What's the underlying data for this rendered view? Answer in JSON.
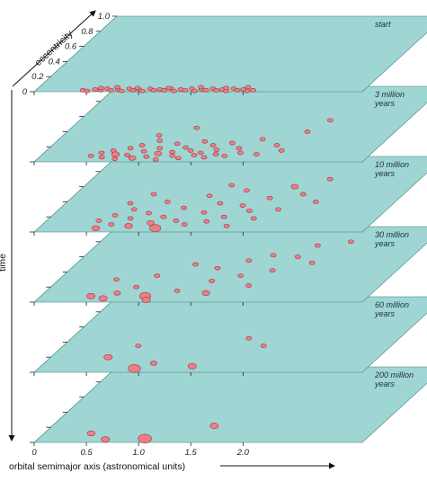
{
  "chart_data": {
    "type": "scatter",
    "xlabel": "orbital semimajor axis (astronomical units)",
    "ylabel": "eccentricity",
    "zlabel": "time",
    "xlim": [
      0,
      2.5
    ],
    "ylim": [
      0,
      1.0
    ],
    "x_ticks": [
      "0",
      "0.5",
      "1.0",
      "1.5",
      "2.0"
    ],
    "y_ticks": [
      "0",
      "0.2",
      "0.4",
      "0.6",
      "0.8",
      "1.0"
    ],
    "panels": [
      {
        "label": "start",
        "points": [
          {
            "x": 0.45,
            "y": 0.02,
            "s": 1
          },
          {
            "x": 0.5,
            "y": 0.01,
            "s": 1
          },
          {
            "x": 0.56,
            "y": 0.03,
            "s": 1
          },
          {
            "x": 0.62,
            "y": 0.02,
            "s": 1
          },
          {
            "x": 0.67,
            "y": 0.04,
            "s": 1
          },
          {
            "x": 0.72,
            "y": 0.02,
            "s": 1
          },
          {
            "x": 0.78,
            "y": 0.03,
            "s": 1
          },
          {
            "x": 0.83,
            "y": 0.01,
            "s": 1
          },
          {
            "x": 0.88,
            "y": 0.04,
            "s": 1
          },
          {
            "x": 0.93,
            "y": 0.02,
            "s": 1
          },
          {
            "x": 0.98,
            "y": 0.03,
            "s": 1
          },
          {
            "x": 1.03,
            "y": 0.01,
            "s": 1
          },
          {
            "x": 1.08,
            "y": 0.04,
            "s": 1
          },
          {
            "x": 1.13,
            "y": 0.02,
            "s": 1
          },
          {
            "x": 1.18,
            "y": 0.03,
            "s": 1
          },
          {
            "x": 1.23,
            "y": 0.02,
            "s": 1
          },
          {
            "x": 1.28,
            "y": 0.04,
            "s": 1
          },
          {
            "x": 1.33,
            "y": 0.01,
            "s": 1
          },
          {
            "x": 1.38,
            "y": 0.03,
            "s": 1
          },
          {
            "x": 1.43,
            "y": 0.02,
            "s": 1
          },
          {
            "x": 1.48,
            "y": 0.04,
            "s": 1
          },
          {
            "x": 1.53,
            "y": 0.01,
            "s": 1
          },
          {
            "x": 1.58,
            "y": 0.03,
            "s": 1
          },
          {
            "x": 1.63,
            "y": 0.02,
            "s": 1
          },
          {
            "x": 1.68,
            "y": 0.04,
            "s": 1
          },
          {
            "x": 1.73,
            "y": 0.02,
            "s": 1
          },
          {
            "x": 1.78,
            "y": 0.03,
            "s": 1
          },
          {
            "x": 1.83,
            "y": 0.01,
            "s": 1
          },
          {
            "x": 1.88,
            "y": 0.04,
            "s": 1
          },
          {
            "x": 1.93,
            "y": 0.02,
            "s": 1
          },
          {
            "x": 1.98,
            "y": 0.03,
            "s": 1
          },
          {
            "x": 2.03,
            "y": 0.01,
            "s": 1
          },
          {
            "x": 2.08,
            "y": 0.02,
            "s": 1
          },
          {
            "x": 0.6,
            "y": 0.05,
            "s": 1
          },
          {
            "x": 0.95,
            "y": 0.05,
            "s": 1
          },
          {
            "x": 1.25,
            "y": 0.05,
            "s": 1
          },
          {
            "x": 1.55,
            "y": 0.06,
            "s": 1
          },
          {
            "x": 1.8,
            "y": 0.05,
            "s": 1
          },
          {
            "x": 2.0,
            "y": 0.06,
            "s": 1
          },
          {
            "x": 0.75,
            "y": 0.06,
            "s": 1
          }
        ]
      },
      {
        "label": "3 million years",
        "points": [
          {
            "x": 0.48,
            "y": 0.08,
            "s": 1
          },
          {
            "x": 0.55,
            "y": 0.12,
            "s": 1
          },
          {
            "x": 0.6,
            "y": 0.06,
            "s": 1
          },
          {
            "x": 0.64,
            "y": 0.15,
            "s": 1
          },
          {
            "x": 0.7,
            "y": 0.1,
            "s": 1.4
          },
          {
            "x": 0.74,
            "y": 0.04,
            "s": 1
          },
          {
            "x": 0.78,
            "y": 0.18,
            "s": 1
          },
          {
            "x": 0.82,
            "y": 0.09,
            "s": 1
          },
          {
            "x": 0.86,
            "y": 0.22,
            "s": 1
          },
          {
            "x": 0.9,
            "y": 0.05,
            "s": 1.3
          },
          {
            "x": 0.94,
            "y": 0.14,
            "s": 1
          },
          {
            "x": 0.98,
            "y": 0.28,
            "s": 1
          },
          {
            "x": 1.02,
            "y": 0.07,
            "s": 1
          },
          {
            "x": 1.06,
            "y": 0.18,
            "s": 1
          },
          {
            "x": 1.1,
            "y": 0.11,
            "s": 1.3
          },
          {
            "x": 1.14,
            "y": 0.03,
            "s": 1
          },
          {
            "x": 1.18,
            "y": 0.24,
            "s": 1
          },
          {
            "x": 1.22,
            "y": 0.13,
            "s": 1
          },
          {
            "x": 1.26,
            "y": 0.08,
            "s": 1
          },
          {
            "x": 1.3,
            "y": 0.19,
            "s": 1
          },
          {
            "x": 1.34,
            "y": 0.05,
            "s": 1
          },
          {
            "x": 1.38,
            "y": 0.15,
            "s": 1
          },
          {
            "x": 1.42,
            "y": 0.27,
            "s": 1
          },
          {
            "x": 1.46,
            "y": 0.09,
            "s": 1
          },
          {
            "x": 1.5,
            "y": 0.12,
            "s": 1
          },
          {
            "x": 1.54,
            "y": 0.22,
            "s": 1
          },
          {
            "x": 1.58,
            "y": 0.06,
            "s": 1
          },
          {
            "x": 1.62,
            "y": 0.16,
            "s": 1
          },
          {
            "x": 1.66,
            "y": 0.1,
            "s": 1
          },
          {
            "x": 1.7,
            "y": 0.25,
            "s": 1
          },
          {
            "x": 1.76,
            "y": 0.08,
            "s": 1
          },
          {
            "x": 1.82,
            "y": 0.18,
            "s": 1
          },
          {
            "x": 1.88,
            "y": 0.12,
            "s": 1
          },
          {
            "x": 1.95,
            "y": 0.3,
            "s": 1
          },
          {
            "x": 2.05,
            "y": 0.1,
            "s": 1
          },
          {
            "x": 2.15,
            "y": 0.22,
            "s": 1
          },
          {
            "x": 2.25,
            "y": 0.15,
            "s": 1
          },
          {
            "x": 2.4,
            "y": 0.55,
            "s": 1
          },
          {
            "x": 1.2,
            "y": 0.45,
            "s": 1
          },
          {
            "x": 2.3,
            "y": 0.4,
            "s": 1
          },
          {
            "x": 0.92,
            "y": 0.35,
            "s": 1
          }
        ]
      },
      {
        "label": "10 million years",
        "points": [
          {
            "x": 0.5,
            "y": 0.15,
            "s": 1
          },
          {
            "x": 0.55,
            "y": 0.05,
            "s": 1.4
          },
          {
            "x": 0.6,
            "y": 0.22,
            "s": 1
          },
          {
            "x": 0.66,
            "y": 0.1,
            "s": 1
          },
          {
            "x": 0.72,
            "y": 0.3,
            "s": 1
          },
          {
            "x": 0.78,
            "y": 0.18,
            "s": 1
          },
          {
            "x": 0.84,
            "y": 0.08,
            "s": 1.4
          },
          {
            "x": 0.9,
            "y": 0.25,
            "s": 1
          },
          {
            "x": 0.96,
            "y": 0.4,
            "s": 1
          },
          {
            "x": 1.02,
            "y": 0.12,
            "s": 1.3
          },
          {
            "x": 1.08,
            "y": 0.2,
            "s": 1
          },
          {
            "x": 1.12,
            "y": 0.05,
            "s": 2
          },
          {
            "x": 1.18,
            "y": 0.32,
            "s": 1
          },
          {
            "x": 1.24,
            "y": 0.15,
            "s": 1
          },
          {
            "x": 1.3,
            "y": 0.48,
            "s": 1
          },
          {
            "x": 1.36,
            "y": 0.1,
            "s": 1
          },
          {
            "x": 1.42,
            "y": 0.26,
            "s": 1
          },
          {
            "x": 1.48,
            "y": 0.38,
            "s": 1
          },
          {
            "x": 1.54,
            "y": 0.14,
            "s": 1
          },
          {
            "x": 1.6,
            "y": 0.55,
            "s": 1
          },
          {
            "x": 1.66,
            "y": 0.2,
            "s": 1
          },
          {
            "x": 1.72,
            "y": 0.35,
            "s": 1
          },
          {
            "x": 1.78,
            "y": 0.08,
            "s": 1
          },
          {
            "x": 1.84,
            "y": 0.28,
            "s": 1
          },
          {
            "x": 1.9,
            "y": 0.45,
            "s": 1
          },
          {
            "x": 1.96,
            "y": 0.18,
            "s": 1
          },
          {
            "x": 2.02,
            "y": 0.6,
            "s": 1.3
          },
          {
            "x": 2.1,
            "y": 0.3,
            "s": 1
          },
          {
            "x": 2.18,
            "y": 0.5,
            "s": 1
          },
          {
            "x": 2.28,
            "y": 0.7,
            "s": 1
          },
          {
            "x": 2.38,
            "y": 0.4,
            "s": 1
          },
          {
            "x": 0.75,
            "y": 0.5,
            "s": 1
          },
          {
            "x": 1.4,
            "y": 0.62,
            "s": 1
          },
          {
            "x": 0.62,
            "y": 0.38,
            "s": 1
          }
        ]
      },
      {
        "label": "30 million years",
        "points": [
          {
            "x": 0.48,
            "y": 0.08,
            "s": 1.5
          },
          {
            "x": 0.55,
            "y": 0.3,
            "s": 1
          },
          {
            "x": 0.62,
            "y": 0.05,
            "s": 1.5
          },
          {
            "x": 0.7,
            "y": 0.12,
            "s": 1.2
          },
          {
            "x": 0.82,
            "y": 0.2,
            "s": 1
          },
          {
            "x": 0.9,
            "y": 0.35,
            "s": 1
          },
          {
            "x": 1.0,
            "y": 0.08,
            "s": 2
          },
          {
            "x": 1.05,
            "y": 0.03,
            "s": 1.5
          },
          {
            "x": 1.15,
            "y": 0.5,
            "s": 1
          },
          {
            "x": 1.25,
            "y": 0.15,
            "s": 1
          },
          {
            "x": 1.4,
            "y": 0.45,
            "s": 1
          },
          {
            "x": 1.48,
            "y": 0.28,
            "s": 1
          },
          {
            "x": 1.55,
            "y": 0.12,
            "s": 1.4
          },
          {
            "x": 1.62,
            "y": 0.55,
            "s": 1
          },
          {
            "x": 1.7,
            "y": 0.35,
            "s": 1
          },
          {
            "x": 1.8,
            "y": 0.62,
            "s": 1
          },
          {
            "x": 1.88,
            "y": 0.22,
            "s": 1
          },
          {
            "x": 1.95,
            "y": 0.42,
            "s": 1
          },
          {
            "x": 2.05,
            "y": 0.6,
            "s": 1
          },
          {
            "x": 2.12,
            "y": 0.75,
            "s": 1
          },
          {
            "x": 2.25,
            "y": 0.52,
            "s": 1
          },
          {
            "x": 2.4,
            "y": 0.8,
            "s": 1
          }
        ]
      },
      {
        "label": "60 million years",
        "points": [
          {
            "x": 0.55,
            "y": 0.2,
            "s": 1.5
          },
          {
            "x": 0.72,
            "y": 0.35,
            "s": 1
          },
          {
            "x": 0.92,
            "y": 0.05,
            "s": 2.2
          },
          {
            "x": 1.05,
            "y": 0.12,
            "s": 1.2
          },
          {
            "x": 1.45,
            "y": 0.08,
            "s": 1.5
          },
          {
            "x": 1.7,
            "y": 0.45,
            "s": 1
          },
          {
            "x": 1.92,
            "y": 0.35,
            "s": 1
          }
        ]
      },
      {
        "label": "200 million years",
        "points": [
          {
            "x": 0.45,
            "y": 0.12,
            "s": 1.4
          },
          {
            "x": 0.65,
            "y": 0.04,
            "s": 1.5
          },
          {
            "x": 1.02,
            "y": 0.05,
            "s": 2.4
          },
          {
            "x": 1.55,
            "y": 0.22,
            "s": 1.5
          }
        ]
      }
    ]
  }
}
